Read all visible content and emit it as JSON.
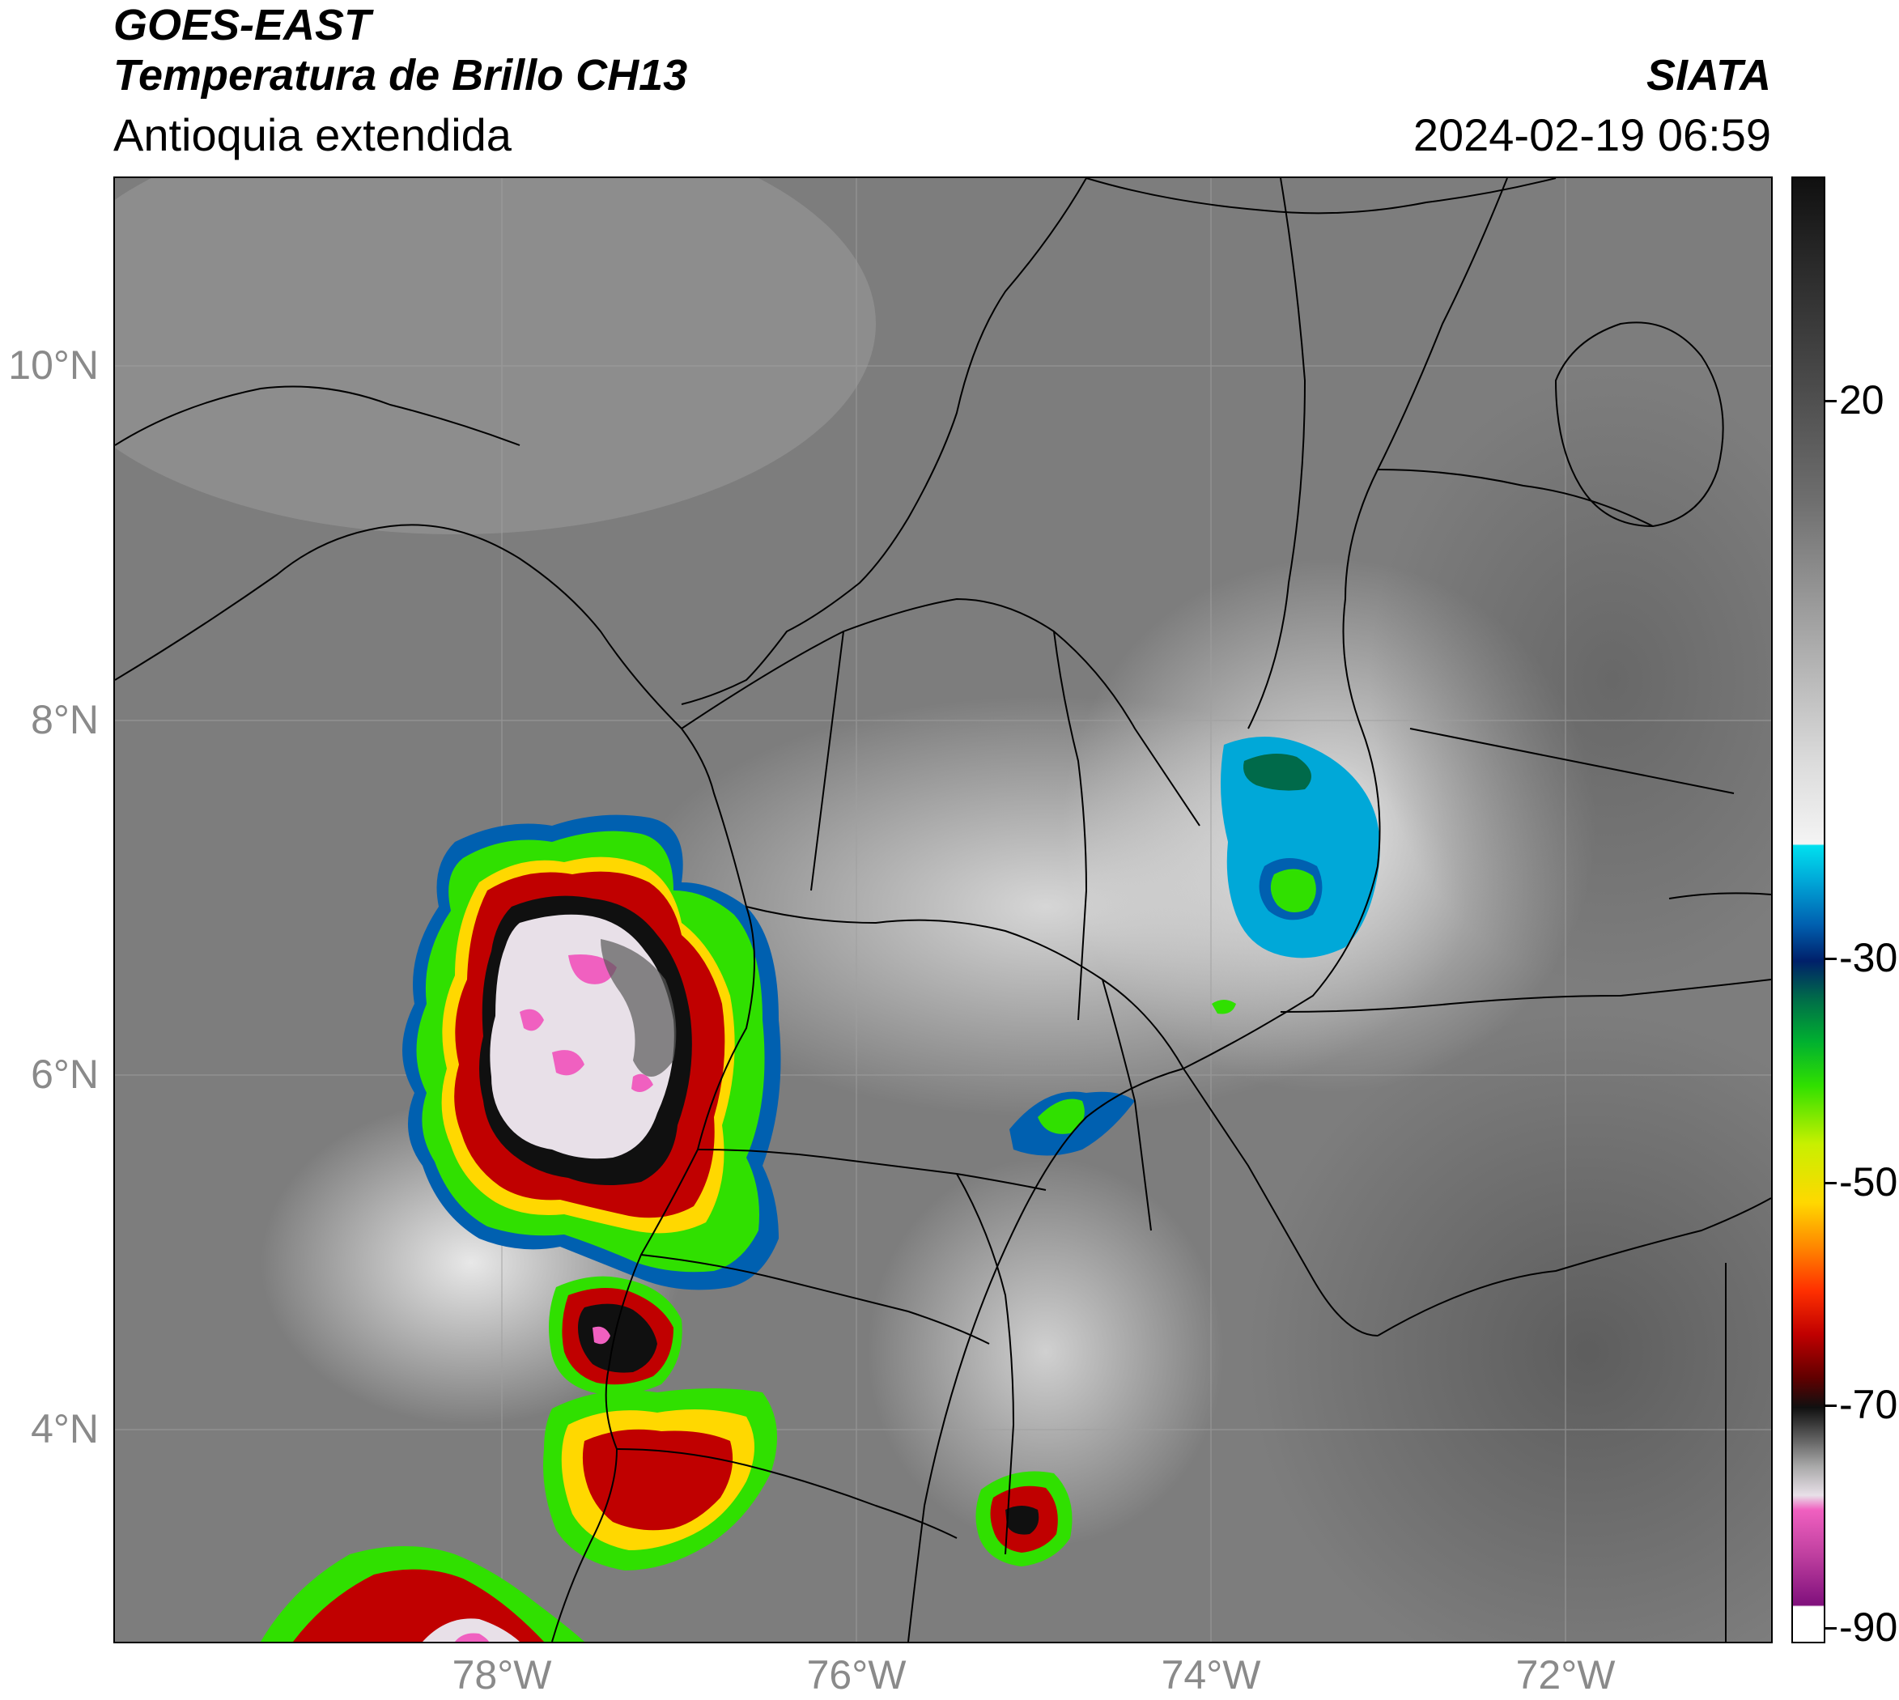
{
  "header": {
    "title_line1": "GOES-EAST",
    "title_line2": "Temperatura de Brillo CH13",
    "region": "Antioquia extendida",
    "organization": "SIATA",
    "datetime": "2024-02-19 06:59"
  },
  "map": {
    "lat_ticks": [
      "10°N",
      "8°N",
      "6°N",
      "4°N"
    ],
    "lon_ticks": [
      "78°W",
      "76°W",
      "74°W",
      "72°W"
    ],
    "gridlines": true
  },
  "colorbar": {
    "labels": [
      "20",
      "-30",
      "-50",
      "-70",
      "-90"
    ],
    "units_hidden": true,
    "colors": {
      "warm_gray": "#7e7e7e",
      "cyan": "#00e0ef",
      "blue": "#0060b0",
      "green": "#30e000",
      "yellow": "#ffd800",
      "red": "#c00000",
      "black": "#101010",
      "pink": "#f060c0",
      "purple": "#80107c"
    }
  }
}
